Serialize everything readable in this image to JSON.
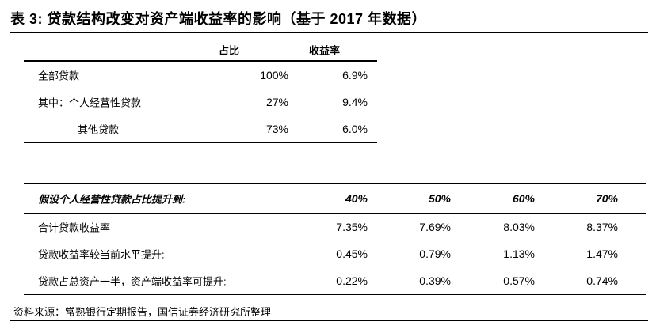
{
  "title": "表 3:  贷款结构改变对资产端收益率的影响（基于 2017 年数据）",
  "table1": {
    "headers": [
      "占比",
      "收益率"
    ],
    "rows": [
      {
        "label": "全部贷款",
        "share": "100%",
        "yield": "6.9%"
      },
      {
        "label": "其中：个人经营性贷款",
        "share": "27%",
        "yield": "9.4%"
      },
      {
        "label": "其他贷款",
        "share": "73%",
        "yield": "6.0%"
      }
    ]
  },
  "table2": {
    "header_label": "假设个人经营性贷款占比提升到:",
    "columns": [
      "40%",
      "50%",
      "60%",
      "70%"
    ],
    "rows": [
      {
        "label": "合计贷款收益率",
        "values": [
          "7.35%",
          "7.69%",
          "8.03%",
          "8.37%"
        ]
      },
      {
        "label": "贷款收益率较当前水平提升:",
        "values": [
          "0.45%",
          "0.79%",
          "1.13%",
          "1.47%"
        ]
      },
      {
        "label": "贷款占总资产一半，资产端收益率可提升:",
        "values": [
          "0.22%",
          "0.39%",
          "0.57%",
          "0.74%"
        ]
      }
    ]
  },
  "source": "资料来源：常熟银行定期报告，国信证券经济研究所整理"
}
